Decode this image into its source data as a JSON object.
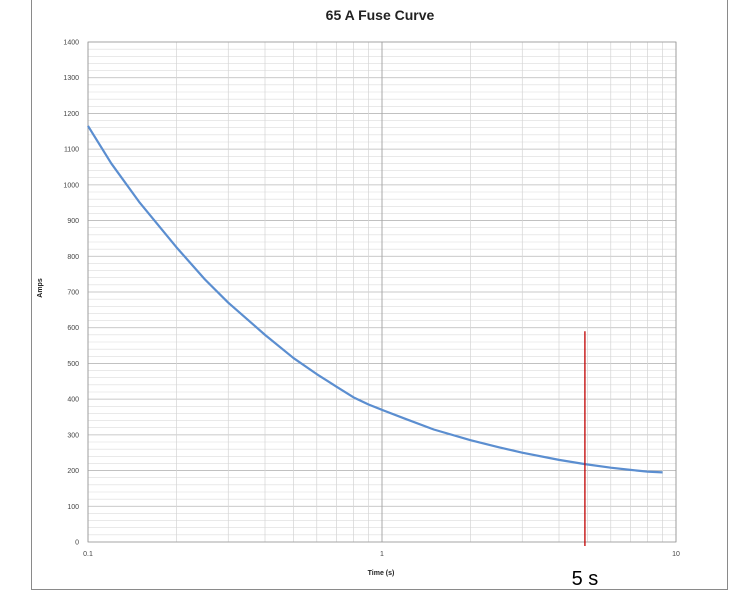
{
  "chart_data": {
    "type": "line",
    "title": "65 A Fuse Curve",
    "xlabel": "Time (s)",
    "ylabel": "Amps",
    "xscale": "log",
    "xlim": [
      0.1,
      10
    ],
    "ylim": [
      0,
      1400
    ],
    "x_ticks": [
      0.1,
      1,
      10
    ],
    "x_tick_labels": [
      "0.1",
      "1",
      "10"
    ],
    "y_ticks": [
      0,
      100,
      200,
      300,
      400,
      500,
      600,
      700,
      800,
      900,
      1000,
      1100,
      1200,
      1300,
      1400
    ],
    "grid": true,
    "legend": "none",
    "series": [
      {
        "color": "#5b8ed0",
        "x": [
          0.1,
          0.12,
          0.15,
          0.2,
          0.25,
          0.3,
          0.4,
          0.5,
          0.6,
          0.7,
          0.8,
          0.9,
          1.0,
          1.2,
          1.5,
          2.0,
          2.5,
          3.0,
          4.0,
          4.9,
          6.0,
          7.0,
          8.0,
          9.0
        ],
        "y": [
          1165,
          1060,
          950,
          825,
          735,
          670,
          580,
          515,
          470,
          435,
          405,
          385,
          370,
          345,
          315,
          285,
          265,
          250,
          230,
          218,
          208,
          202,
          197,
          195
        ]
      }
    ],
    "annotations": [
      {
        "type": "vline",
        "x": 4.9,
        "y_top": 590,
        "color": "#c00000",
        "label": "5 s"
      }
    ]
  }
}
